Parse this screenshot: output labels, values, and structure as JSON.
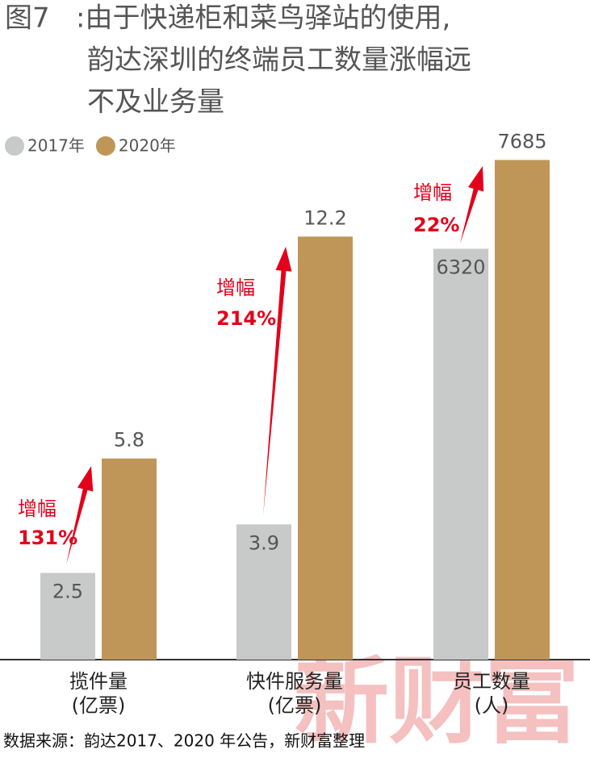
{
  "figure_label": "图7",
  "title_lines": [
    ":由于快递柜和菜鸟驿站的使用,",
    "韵达深圳的终端员工数量涨幅远",
    "不及业务量"
  ],
  "source": "数据来源：韵达2017、2020 年公告，新财富整理",
  "watermark": "新财富",
  "chart_data": {
    "type": "bar",
    "categories": [
      [
        "揽件量",
        "(亿票)"
      ],
      [
        "快件服务量",
        "(亿票)"
      ],
      [
        "员工数量",
        "(人)"
      ]
    ],
    "category_ylims": [
      [
        0,
        15
      ],
      [
        0,
        15
      ],
      [
        0,
        8000
      ]
    ],
    "series": [
      {
        "name": "2017年",
        "color": "#c8c9c9",
        "values": [
          2.5,
          3.9,
          6320
        ]
      },
      {
        "name": "2020年",
        "color": "#bf9658",
        "values": [
          5.8,
          12.2,
          7685
        ]
      }
    ],
    "annotations": [
      {
        "text": "增幅",
        "growth": "131%"
      },
      {
        "text": "增幅",
        "growth": "214%"
      },
      {
        "text": "增幅",
        "growth": "22%"
      }
    ],
    "annotation_color": "#e3001b"
  }
}
